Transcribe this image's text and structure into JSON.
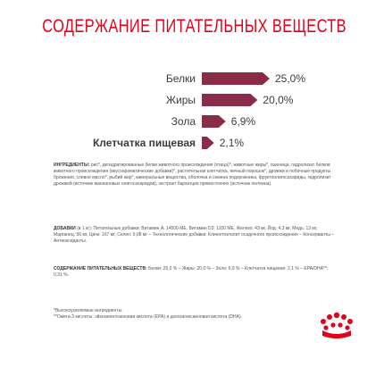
{
  "title": "СОДЕРЖАНИЕ ПИТАТЕЛЬНЫХ ВЕЩЕСТВ",
  "colors": {
    "title": "#e2001a",
    "bar": "#8a2b48",
    "text": "#3a3a3a"
  },
  "chart_data": {
    "type": "bar",
    "orientation": "horizontal",
    "categories": [
      "Белки",
      "Жиры",
      "Зола",
      "Клетчатка пищевая"
    ],
    "values": [
      25.0,
      20.0,
      6.9,
      2.1
    ],
    "value_labels": [
      "25,0%",
      "20,0%",
      "6,9%",
      "2,1%"
    ],
    "unit": "%",
    "title": "СОДЕРЖАНИЕ ПИТАТЕЛЬНЫХ ВЕЩЕСТВ",
    "xlim": [
      0,
      25
    ]
  },
  "ingredients": {
    "heading": "ИНГРЕДИЕНТЫ:",
    "text": " рис*, дегидратированные белки животного происхождения (птица)*, животные жиры*, пшеница, гидролизат белков животного происхождения (вкусоароматические добавки)*, растительная клетчатка, яичный порошок*, дрожжи и побочные продукты брожения, соевое масло*, рыбий жир*, минеральные вещества, оболочка и семена подорожника, фруктоолигосахариды, гидролизат дрожжей (источник маннановых олигосахаридов), экстракт бархатцев прямостоячих (источник лютеина)."
  },
  "additives": {
    "heading": "ДОБАВКИ",
    "text": " (в 1 кг): Питательные добавки: Витамин А: 14500 МЕ, Витамин D3: 1100 МЕ, Железо: 43 мг, Йод: 4,3 мг, Медь: 13 мг, Марганец: 56 мг, Цинк: 167 мг, Селен: 0,08 мг – Технологические добавки: Клиноптилолит осадочного происхождения – Консерванты – Антиоксиданты."
  },
  "nutrients": {
    "heading": "СОДЕРЖАНИЕ ПИТАТЕЛЬНЫХ ВЕЩЕСТВ:",
    "text": " Белки: 25,0 % – Жиры: 20,0 % – Зола: 6,9 % – Клетчатка пищевая: 2,1 % – EPA/DHA**: 0,31 %."
  },
  "footnotes": [
    "*Высокоусвояемые ингредиенты.",
    "**Омега-3 кислоты: эйкозапентаеновая кислота (EPA) и докозагексаеновая кислота (DHA)."
  ],
  "logo": {
    "icon": "royal-canin-crown-logo"
  }
}
